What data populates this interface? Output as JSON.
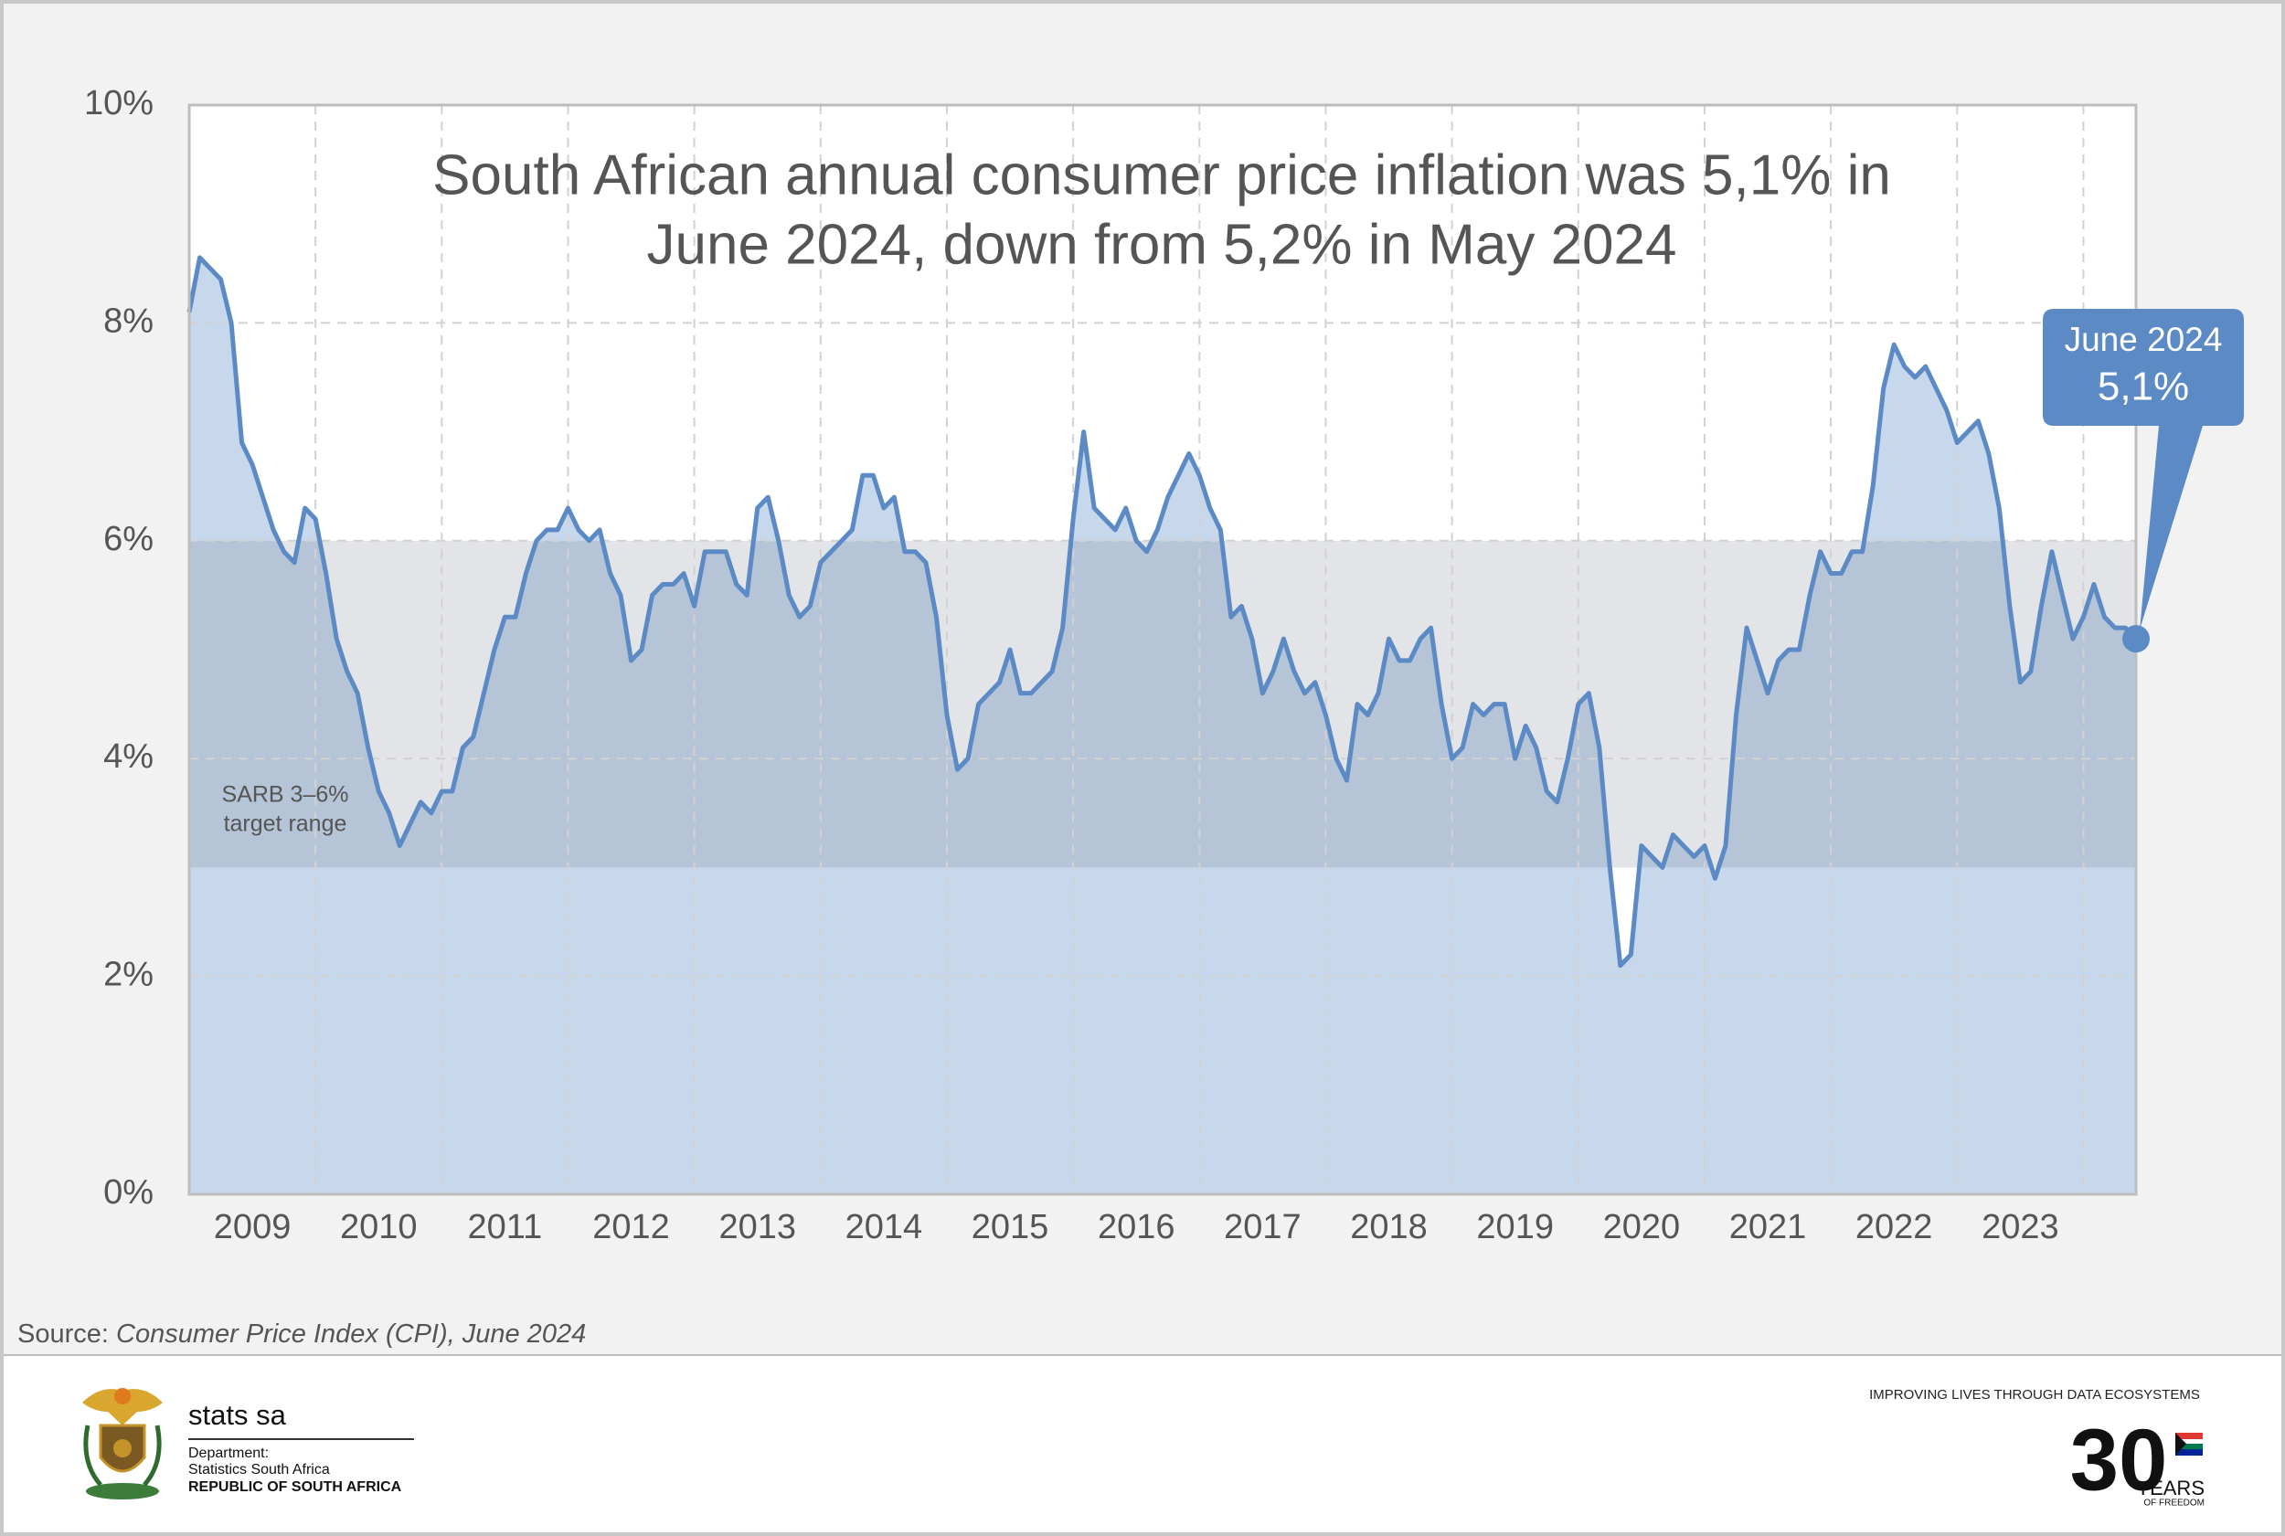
{
  "chart_data": {
    "type": "area",
    "title": [
      "South African annual consumer price inflation was 5,1% in",
      "June 2024, down from 5,2% in May 2024"
    ],
    "categories": [
      null,
      null,
      null,
      null,
      null,
      null,
      "2009",
      null,
      null,
      null,
      null,
      null,
      null,
      null,
      null,
      null,
      null,
      null,
      "2010",
      null,
      null,
      null,
      null,
      null,
      null,
      null,
      null,
      null,
      null,
      null,
      "2011",
      null,
      null,
      null,
      null,
      null,
      null,
      null,
      null,
      null,
      null,
      null,
      "2012",
      null,
      null,
      null,
      null,
      null,
      null,
      null,
      null,
      null,
      null,
      null,
      "2013",
      null,
      null,
      null,
      null,
      null,
      null,
      null,
      null,
      null,
      null,
      null,
      "2014",
      null,
      null,
      null,
      null,
      null,
      null,
      null,
      null,
      null,
      null,
      null,
      "2015",
      null,
      null,
      null,
      null,
      null,
      null,
      null,
      null,
      null,
      null,
      null,
      "2016",
      null,
      null,
      null,
      null,
      null,
      null,
      null,
      null,
      null,
      null,
      null,
      "2017",
      null,
      null,
      null,
      null,
      null,
      null,
      null,
      null,
      null,
      null,
      null,
      "2018",
      null,
      null,
      null,
      null,
      null,
      null,
      null,
      null,
      null,
      null,
      null,
      "2019",
      null,
      null,
      null,
      null,
      null,
      null,
      null,
      null,
      null,
      null,
      null,
      "2020",
      null,
      null,
      null,
      null,
      null,
      null,
      null,
      null,
      null,
      null,
      null,
      "2021",
      null,
      null,
      null,
      null,
      null,
      null,
      null,
      null,
      null,
      null,
      null,
      "2022",
      null,
      null,
      null,
      null,
      null,
      null,
      null,
      null,
      null,
      null,
      null,
      "2023",
      null,
      null,
      null,
      null,
      null,
      null,
      null,
      null,
      null,
      null,
      null
    ],
    "values": [
      8.1,
      8.6,
      8.5,
      8.4,
      8.0,
      6.9,
      6.7,
      6.4,
      6.1,
      5.9,
      5.8,
      6.3,
      6.2,
      5.7,
      5.1,
      4.8,
      4.6,
      4.1,
      3.7,
      3.5,
      3.2,
      3.4,
      3.6,
      3.5,
      3.7,
      3.7,
      4.1,
      4.2,
      4.6,
      5.0,
      5.3,
      5.3,
      5.7,
      6.0,
      6.1,
      6.1,
      6.3,
      6.1,
      6.0,
      6.1,
      5.7,
      5.5,
      4.9,
      5.0,
      5.5,
      5.6,
      5.6,
      5.7,
      5.4,
      5.9,
      5.9,
      5.9,
      5.6,
      5.5,
      6.3,
      6.4,
      6.0,
      5.5,
      5.3,
      5.4,
      5.8,
      5.9,
      6.0,
      6.1,
      6.6,
      6.6,
      6.3,
      6.4,
      5.9,
      5.9,
      5.8,
      5.3,
      4.4,
      3.9,
      4.0,
      4.5,
      4.6,
      4.7,
      5.0,
      4.6,
      4.6,
      4.7,
      4.8,
      5.2,
      6.2,
      7.0,
      6.3,
      6.2,
      6.1,
      6.3,
      6.0,
      5.9,
      6.1,
      6.4,
      6.6,
      6.8,
      6.6,
      6.3,
      6.1,
      5.3,
      5.4,
      5.1,
      4.6,
      4.8,
      5.1,
      4.8,
      4.6,
      4.7,
      4.4,
      4.0,
      3.8,
      4.5,
      4.4,
      4.6,
      5.1,
      4.9,
      4.9,
      5.1,
      5.2,
      4.5,
      4.0,
      4.1,
      4.5,
      4.4,
      4.5,
      4.5,
      4.0,
      4.3,
      4.1,
      3.7,
      3.6,
      4.0,
      4.5,
      4.6,
      4.1,
      3.0,
      2.1,
      2.2,
      3.2,
      3.1,
      3.0,
      3.3,
      3.2,
      3.1,
      3.2,
      2.9,
      3.2,
      4.4,
      5.2,
      4.9,
      4.6,
      4.9,
      5.0,
      5.0,
      5.5,
      5.9,
      5.7,
      5.7,
      5.9,
      5.9,
      6.5,
      7.4,
      7.8,
      7.6,
      7.5,
      7.6,
      7.4,
      7.2,
      6.9,
      7.0,
      7.1,
      6.8,
      6.3,
      5.4,
      4.7,
      4.8,
      5.4,
      5.9,
      5.5,
      5.1,
      5.3,
      5.6,
      5.3,
      5.2,
      5.2,
      5.1
    ],
    "color": "#5b8ac5",
    "fill_color": "#c8d8ec",
    "ylim": [
      0,
      10
    ],
    "yticks": [
      {
        "value": 0,
        "label": "0%"
      },
      {
        "value": 2,
        "label": "2%"
      },
      {
        "value": 4,
        "label": "4%"
      },
      {
        "value": 6,
        "label": "6%"
      },
      {
        "value": 8,
        "label": "8%"
      },
      {
        "value": 10,
        "label": "10%"
      }
    ],
    "grid": true,
    "band": {
      "range": [
        3,
        6
      ],
      "label": [
        "SARB 3–6%",
        "target range"
      ]
    },
    "callout": {
      "label": "June 2024",
      "value_label": "5,1%"
    },
    "source": {
      "prefix": "Source:",
      "text": "Consumer Price Index (CPI), June 2024"
    }
  },
  "footer": {
    "org": "stats sa",
    "department": [
      "Department:",
      "Statistics South Africa",
      "REPUBLIC OF SOUTH AFRICA"
    ],
    "slogan": "IMPROVING LIVES THROUGH DATA ECOSYSTEMS",
    "anniversary": {
      "number": "30",
      "label": "YEARS",
      "sub": "OF FREEDOM"
    }
  }
}
